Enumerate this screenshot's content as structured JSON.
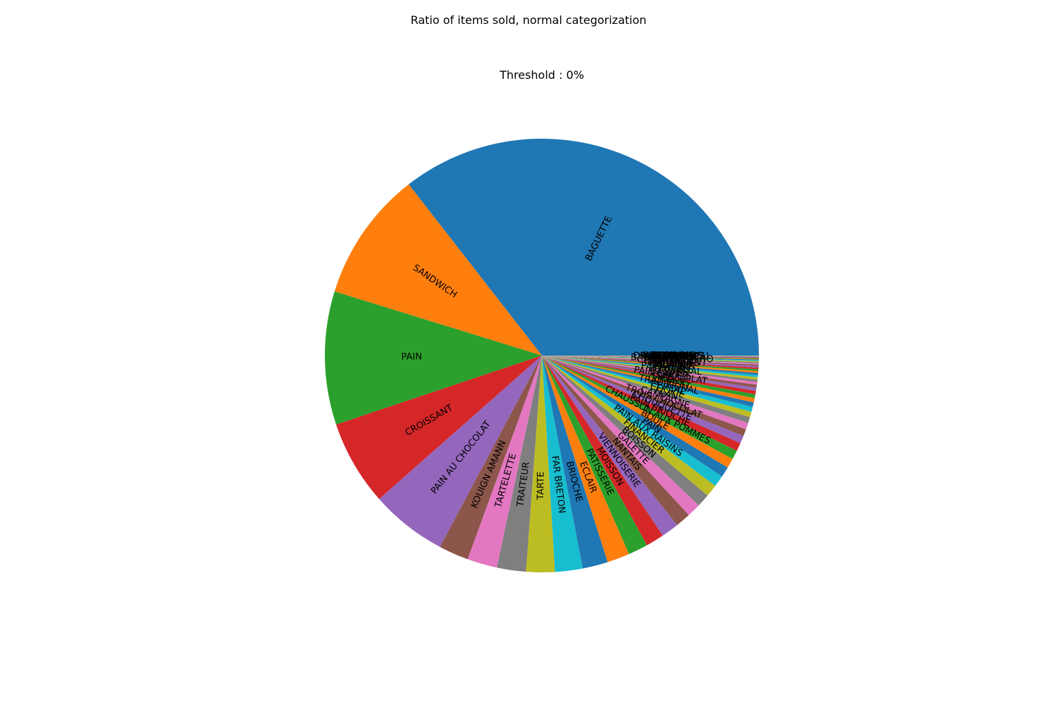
{
  "figure": {
    "suptitle": "Ratio of items sold, normal categorization",
    "subtitle": "Threshold : 0%"
  },
  "chart_data": {
    "type": "pie",
    "title": "Threshold : 0%",
    "start_angle_deg": 0,
    "direction": "counterclockwise",
    "labels_rotated": true,
    "slices": [
      {
        "label": "BAGUETTE",
        "value": 37.29
      },
      {
        "label": "SANDWICH",
        "value": 10.19
      },
      {
        "label": "PAIN",
        "value": 10.43
      },
      {
        "label": "CROISSANT",
        "value": 6.67
      },
      {
        "label": "PAIN AU CHOCOLAT",
        "value": 5.99
      },
      {
        "label": "KOUIGN AMANN",
        "value": 2.34
      },
      {
        "label": "TARTELETTE",
        "value": 2.34
      },
      {
        "label": "TRAITEUR",
        "value": 2.27
      },
      {
        "label": "TARTE",
        "value": 2.23
      },
      {
        "label": "FAR BRETON",
        "value": 2.16
      },
      {
        "label": "BRIOCHE",
        "value": 1.98
      },
      {
        "label": "ECLAIR",
        "value": 1.76
      },
      {
        "label": "PATISSERIE",
        "value": 1.54
      },
      {
        "label": "MOISSON",
        "value": 1.43
      },
      {
        "label": "VIENNOISERIE",
        "value": 1.37
      },
      {
        "label": "NANTAIS",
        "value": 1.18
      },
      {
        "label": "GALETTE",
        "value": 1.07
      },
      {
        "label": "BOISSON",
        "value": 1.02
      },
      {
        "label": "FINANCIER",
        "value": 0.95
      },
      {
        "label": "PAIN AUX RAISINS",
        "value": 0.89
      },
      {
        "label": "PAIN",
        "value": 0.82
      },
      {
        "label": "BOULE",
        "value": 0.76
      },
      {
        "label": "CHAUSSON AUX POMMES",
        "value": 0.71
      },
      {
        "label": "PAIN BRIOCHE",
        "value": 0.65
      },
      {
        "label": "CHOUQUETTE",
        "value": 0.6
      },
      {
        "label": "TROIS CHOCOLAT",
        "value": 0.55
      },
      {
        "label": "CAMPAGNE",
        "value": 0.51
      },
      {
        "label": "FLAN",
        "value": 0.47
      },
      {
        "label": "COOKIE",
        "value": 0.43
      },
      {
        "label": "CEREAL",
        "value": 0.39
      },
      {
        "label": "TRADITIONAL",
        "value": 0.36
      },
      {
        "label": "COMPLET",
        "value": 0.33
      },
      {
        "label": "FICELLE",
        "value": 0.3
      },
      {
        "label": "SABLE",
        "value": 0.27
      },
      {
        "label": "PAIN CHOCOLAT",
        "value": 0.25
      },
      {
        "label": "BANETTE",
        "value": 0.23
      },
      {
        "label": "CAFE",
        "value": 0.21
      },
      {
        "label": "DIVERS",
        "value": 0.19
      },
      {
        "label": "PAIN SPECIAL",
        "value": 0.18
      },
      {
        "label": "GATEAU",
        "value": 0.17
      },
      {
        "label": "MUFFIN",
        "value": 0.16
      },
      {
        "label": "CRUMBLE",
        "value": 0.15
      },
      {
        "label": "MACARON",
        "value": 0.14
      },
      {
        "label": "FRAISIER",
        "value": 0.13
      },
      {
        "label": "ENTREMETS",
        "value": 0.12
      },
      {
        "label": "CROUSTILLANT",
        "value": 0.11
      },
      {
        "label": "FORMULE",
        "value": 0.1
      },
      {
        "label": "VIRTUAL",
        "value": 0.09
      },
      {
        "label": "SUCETTE",
        "value": 0.08
      },
      {
        "label": "BAGUETTE APERO",
        "value": 0.07
      },
      {
        "label": "PLATEAU",
        "value": 0.06
      },
      {
        "label": "PAIN NOIR",
        "value": 0.05
      },
      {
        "label": "PAIN DE MIE",
        "value": 0.05
      },
      {
        "label": "CARAMEL",
        "value": 0.04
      },
      {
        "label": "BUCHE",
        "value": 0.04
      },
      {
        "label": "PAIN GRAINES",
        "value": 0.03
      },
      {
        "label": "DELICETROPICAL",
        "value": 0.03
      },
      {
        "label": "GUERANDAIS",
        "value": 0.02
      },
      {
        "label": "FONDANT",
        "value": 0.02
      },
      {
        "label": "POMPON",
        "value": 0.02
      }
    ],
    "colors": [
      "#1f77b4",
      "#ff7f0e",
      "#2ca02c",
      "#d62728",
      "#9467bd",
      "#8c564b",
      "#e377c2",
      "#7f7f7f",
      "#bcbd22",
      "#17becf"
    ]
  }
}
